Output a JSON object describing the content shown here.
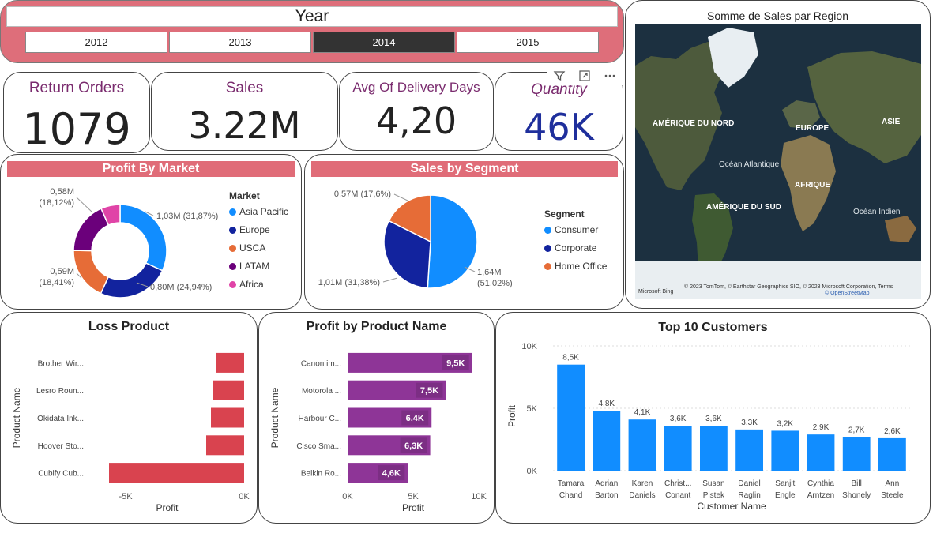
{
  "year_slicer": {
    "title": "Year",
    "options": [
      {
        "label": "2012",
        "selected": false
      },
      {
        "label": "2013",
        "selected": false
      },
      {
        "label": "2014",
        "selected": true
      },
      {
        "label": "2015",
        "selected": false
      }
    ]
  },
  "kpis": {
    "return_orders": {
      "label": "Return Orders",
      "value": "1079"
    },
    "sales": {
      "label": "Sales",
      "value": "3.22M"
    },
    "avg_delivery": {
      "label": "Avg Of Delivery Days",
      "value": "4,20"
    },
    "quantity": {
      "label": "Quantity",
      "value": "46K"
    }
  },
  "colors": {
    "accent_pink": "#e06c78",
    "purple_bar": "#8e3597",
    "loss_bar": "#d9434f",
    "blue_bar": "#118dff",
    "kpi_label": "#7a2b6e",
    "quantity_value": "#1f2f9c"
  },
  "map": {
    "title": "Somme de Sales par Region",
    "labels": [
      "AMÉRIQUE DU NORD",
      "EUROPE",
      "ASIE",
      "Océan Atlantique",
      "AFRIQUE",
      "AMÉRIQUE DU SUD",
      "Océan Indien"
    ],
    "attribution": "© 2023 TomTom, © Earthstar Geographics SIO, © 2023 Microsoft Corporation, Terms",
    "attribution2": "© OpenStreetMap",
    "logo": "Microsoft Bing"
  },
  "chart_data": [
    {
      "type": "pie",
      "donut": true,
      "title": "Profit By Market",
      "legend_title": "Market",
      "categories": [
        "Asia Pacific",
        "Europe",
        "USCA",
        "LATAM",
        "Africa"
      ],
      "values": [
        31.87,
        24.94,
        18.41,
        18.12,
        6.66
      ],
      "colors": [
        "#118dff",
        "#12239e",
        "#e66c37",
        "#6b007b",
        "#e044a7"
      ],
      "data_labels": [
        {
          "value": "1,03M",
          "pct": "(31,87%)"
        },
        {
          "value": "0,80M",
          "pct": "(24,94%)"
        },
        {
          "value": "0,59M",
          "pct": "(18,41%)"
        },
        {
          "value": "0,58M",
          "pct": "(18,12%)"
        }
      ]
    },
    {
      "type": "pie",
      "donut": false,
      "title": "Sales by Segment",
      "legend_title": "Segment",
      "categories": [
        "Consumer",
        "Corporate",
        "Home Office"
      ],
      "values": [
        51.02,
        31.38,
        17.6
      ],
      "colors": [
        "#118dff",
        "#12239e",
        "#e66c37"
      ],
      "data_labels": [
        {
          "value": "1,64M",
          "pct": "(51,02%)"
        },
        {
          "value": "1,01M",
          "pct": "(31,38%)"
        },
        {
          "value": "0,57M",
          "pct": "(17,6%)"
        }
      ]
    },
    {
      "type": "bar",
      "orientation": "horizontal",
      "title": "Loss Product",
      "categories": [
        "Brother Wir...",
        "Lesro Roun...",
        "Okidata Ink...",
        "Hoover Sto...",
        "Cubify Cub..."
      ],
      "values": [
        -1.2,
        -1.3,
        -1.4,
        -1.6,
        -5.7
      ],
      "xlabel": "Profit",
      "ylabel": "Product Name",
      "x_ticks": [
        "-5K",
        "0K"
      ],
      "xlim": [
        -6.5,
        0
      ]
    },
    {
      "type": "bar",
      "orientation": "horizontal",
      "title": "Profit by Product Name",
      "categories": [
        "Canon im...",
        "Motorola ...",
        "Harbour C...",
        "Cisco Sma...",
        "Belkin Ro..."
      ],
      "values": [
        9.5,
        7.5,
        6.4,
        6.3,
        4.6
      ],
      "value_labels": [
        "9,5K",
        "7,5K",
        "6,4K",
        "6,3K",
        "4,6K"
      ],
      "xlabel": "Profit",
      "ylabel": "Product Name",
      "x_ticks": [
        "0K",
        "5K",
        "10K"
      ],
      "xlim": [
        0,
        10
      ]
    },
    {
      "type": "bar",
      "orientation": "vertical",
      "title": "Top 10 Customers",
      "categories": [
        [
          "Tamara",
          "Chand"
        ],
        [
          "Adrian",
          "Barton"
        ],
        [
          "Karen",
          "Daniels"
        ],
        [
          "Christ...",
          "Conant"
        ],
        [
          "Susan",
          "Pistek"
        ],
        [
          "Daniel",
          "Raglin"
        ],
        [
          "Sanjit",
          "Engle"
        ],
        [
          "Cynthia",
          "Arntzen"
        ],
        [
          "Bill",
          "Shonely"
        ],
        [
          "Ann",
          "Steele"
        ]
      ],
      "values": [
        8.5,
        4.8,
        4.1,
        3.6,
        3.6,
        3.3,
        3.2,
        2.9,
        2.7,
        2.6
      ],
      "value_labels": [
        "8,5K",
        "4,8K",
        "4,1K",
        "3,6K",
        "3,6K",
        "3,3K",
        "3,2K",
        "2,9K",
        "2,7K",
        "2,6K"
      ],
      "xlabel": "Customer Name",
      "ylabel": "Profit",
      "y_ticks": [
        "0K",
        "5K",
        "10K"
      ],
      "ylim": [
        0,
        10
      ]
    }
  ]
}
